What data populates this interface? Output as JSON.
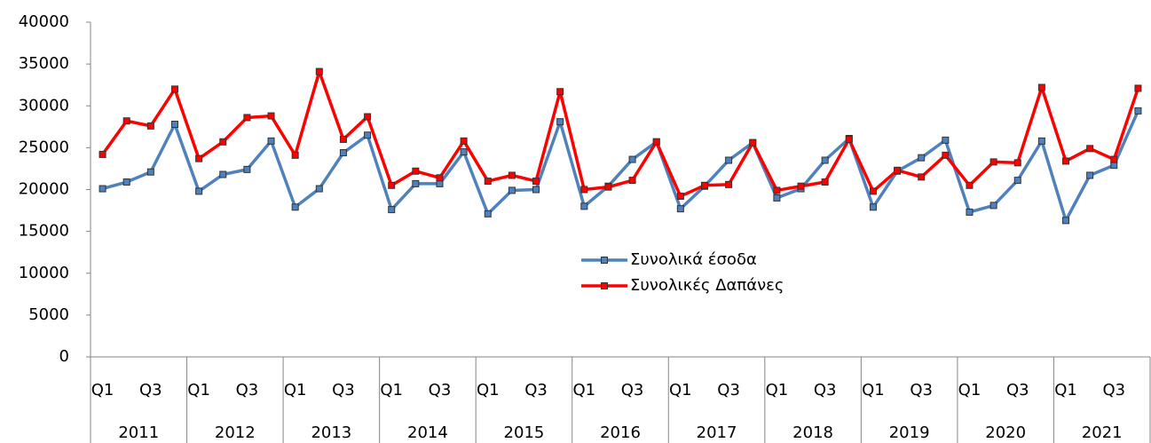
{
  "chart_data": {
    "type": "line",
    "categories": [
      "Q1",
      null,
      "Q3",
      null,
      "Q1",
      null,
      "Q3",
      null,
      "Q1",
      null,
      "Q3",
      null,
      "Q1",
      null,
      "Q3",
      null,
      "Q1",
      null,
      "Q3",
      null,
      "Q1",
      null,
      "Q3",
      null,
      "Q1",
      null,
      "Q3",
      null,
      "Q1",
      null,
      "Q3",
      null,
      "Q1",
      null,
      "Q3",
      null,
      "Q1",
      null,
      "Q3",
      null,
      "Q1",
      null,
      "Q3",
      null
    ],
    "groups": [
      "2011",
      "2012",
      "2013",
      "2014",
      "2015",
      "2016",
      "2017",
      "2018",
      "2019",
      "2020",
      "2021"
    ],
    "series": [
      {
        "name": "Συνολικά έσοδα",
        "color": "#4f81bd",
        "values": [
          20100,
          20900,
          22100,
          27800,
          19800,
          21800,
          22400,
          25800,
          17900,
          20100,
          24400,
          26500,
          17600,
          20700,
          20700,
          24500,
          17100,
          19900,
          20000,
          28100,
          18000,
          20400,
          23600,
          25700,
          17700,
          20400,
          23500,
          25600,
          19000,
          20100,
          23500,
          26100,
          17900,
          22200,
          23800,
          25900,
          17300,
          18100,
          21100,
          25800,
          16300,
          21700,
          22900,
          29400
        ]
      },
      {
        "name": "Συνολικές Δαπάνες",
        "color": "#ff0000",
        "values": [
          24200,
          28200,
          27600,
          32000,
          23700,
          25700,
          28600,
          28800,
          24100,
          34100,
          26000,
          28700,
          20500,
          22200,
          21400,
          25800,
          21000,
          21700,
          21000,
          31700,
          20000,
          20300,
          21100,
          25700,
          19200,
          20500,
          20600,
          25600,
          19900,
          20400,
          20900,
          26000,
          19800,
          22300,
          21500,
          24100,
          20500,
          23300,
          23200,
          32200,
          23400,
          24900,
          23600,
          32100
        ]
      }
    ],
    "ylim": [
      0,
      40000
    ],
    "yticks": [
      0,
      5000,
      10000,
      15000,
      20000,
      25000,
      30000,
      35000,
      40000
    ],
    "grid": false,
    "legend": "center",
    "marker": "square"
  }
}
